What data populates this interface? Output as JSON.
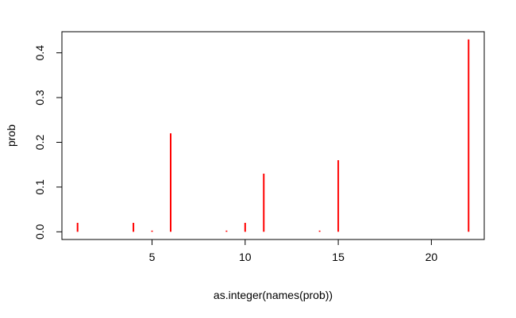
{
  "chart_data": {
    "type": "bar",
    "title": "",
    "xlabel": "as.integer(names(prob))",
    "ylabel": "prob",
    "xlim": [
      0.16,
      22.84
    ],
    "ylim": [
      -0.0172,
      0.4472
    ],
    "xticks": [
      5,
      10,
      15,
      20
    ],
    "yticks": [
      0.0,
      0.1,
      0.2,
      0.3,
      0.4
    ],
    "ytick_labels": [
      "0.0",
      "0.1",
      "0.2",
      "0.3",
      "0.4"
    ],
    "x": [
      1,
      4,
      5,
      6,
      9,
      10,
      11,
      14,
      15,
      22
    ],
    "values": [
      0.02,
      0.02,
      0.002,
      0.22,
      0.002,
      0.02,
      0.13,
      0.002,
      0.16,
      0.43
    ],
    "color": "#ff0000",
    "grid": false,
    "legend": "none"
  }
}
